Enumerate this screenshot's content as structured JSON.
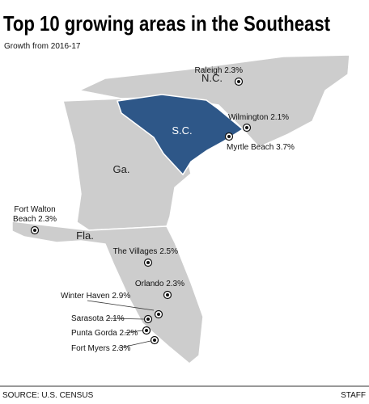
{
  "header": {
    "title": "Top 10 growing areas in the Southeast",
    "subtitle": "Growth from 2016-17"
  },
  "states": [
    "N.C.",
    "S.C.",
    "Ga.",
    "Fla."
  ],
  "cities": [
    {
      "lines": [
        "Raleigh 2.3%"
      ]
    },
    {
      "lines": [
        "Wilmington 2.1%"
      ]
    },
    {
      "lines": [
        "Myrtle Beach 3.7%"
      ]
    },
    {
      "lines": [
        "Fort Walton",
        "Beach 2.3%"
      ]
    },
    {
      "lines": [
        "The Villages 2.5%"
      ]
    },
    {
      "lines": [
        "Orlando 2.3%"
      ]
    },
    {
      "lines": [
        "Winter Haven 2.9%"
      ]
    },
    {
      "lines": [
        "Sarasota 2.1%"
      ]
    },
    {
      "lines": [
        "Punta Gorda 2.2%"
      ]
    },
    {
      "lines": [
        "Fort Myers 2.3%"
      ]
    }
  ],
  "footer": {
    "source": "SOURCE: U.S. CENSUS",
    "credit": "STAFF"
  }
}
